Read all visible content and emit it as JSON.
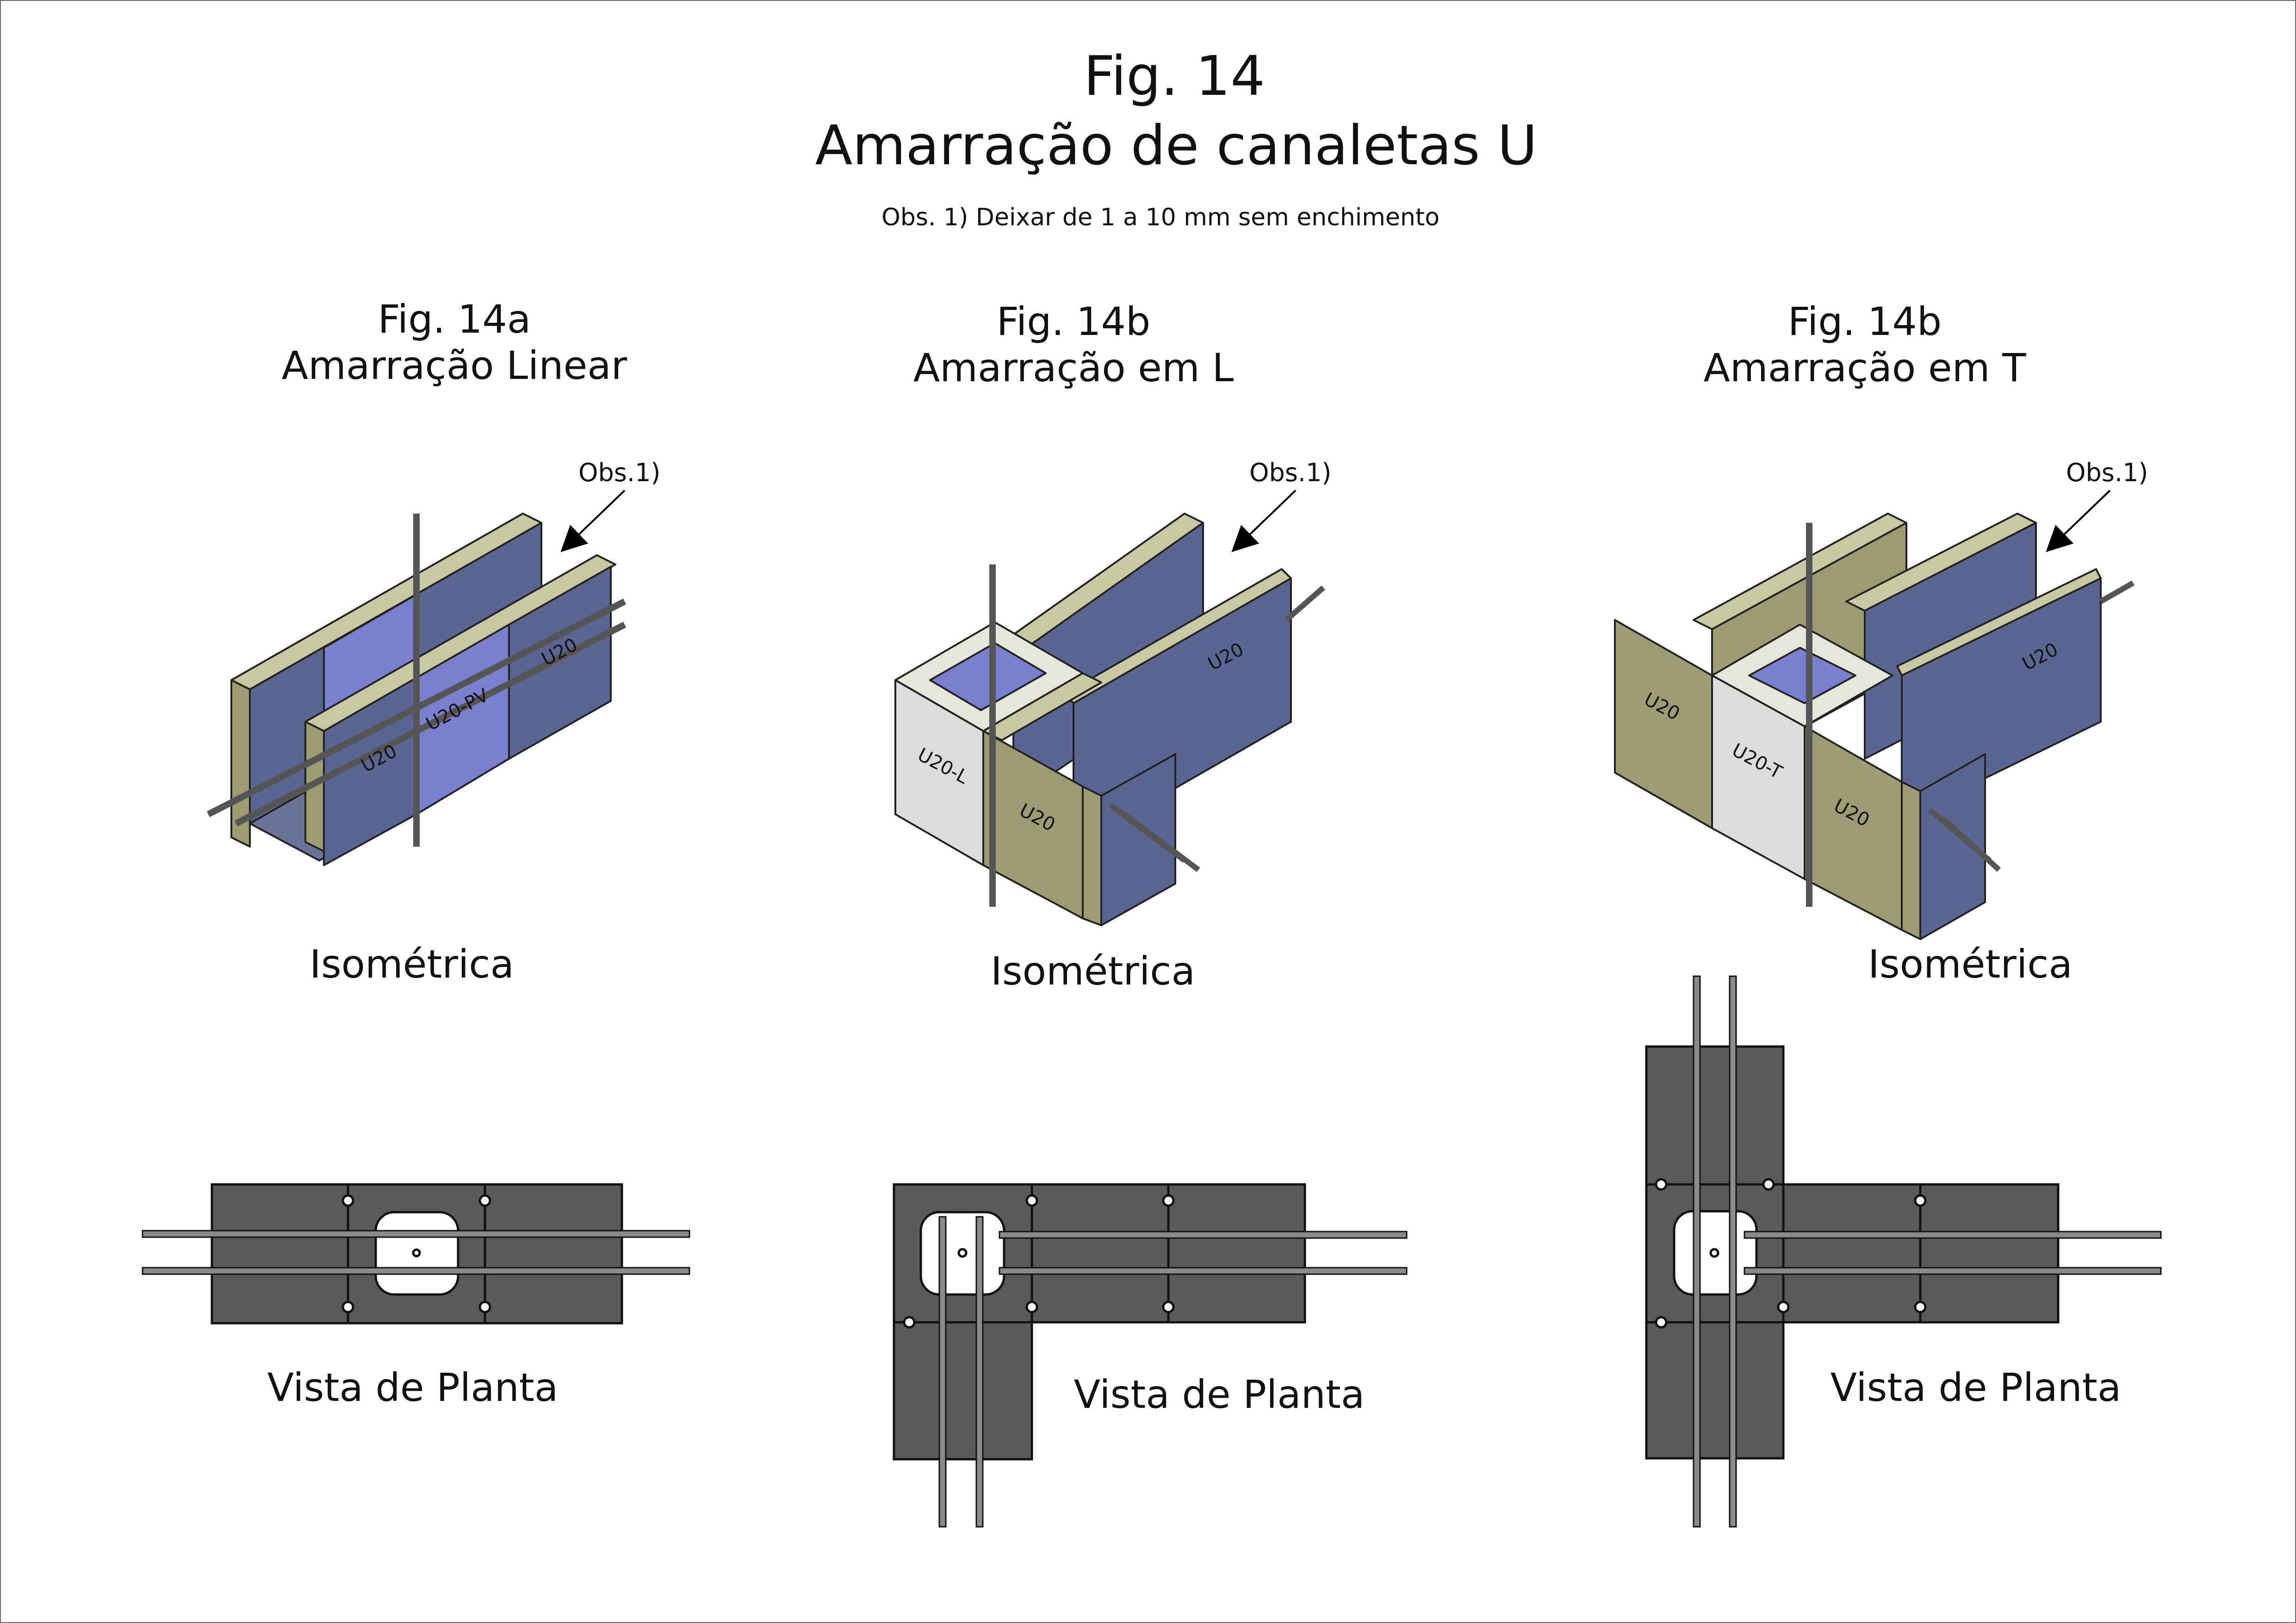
{
  "header": {
    "fig_number": "Fig. 14",
    "title": "Amarração de canaletas U",
    "note": "Obs. 1) Deixar de 1 a 10 mm sem enchimento"
  },
  "panels": [
    {
      "fig": "Fig. 14a",
      "title": "Amarração Linear",
      "obs_label": "Obs.1)",
      "view_iso": "Isométrica",
      "view_plan": "Vista de Planta",
      "block_labels": [
        "U20",
        "U20-PV",
        "U20"
      ]
    },
    {
      "fig": "Fig. 14b",
      "title": "Amarração em L",
      "obs_label": "Obs.1)",
      "view_iso": "Isométrica",
      "view_plan": "Vista de Planta",
      "block_labels": [
        "U20-L",
        "U20",
        "U20"
      ]
    },
    {
      "fig": "Fig. 14b",
      "title": "Amarração em T",
      "obs_label": "Obs.1)",
      "view_iso": "Isométrica",
      "view_plan": "Vista de Planta",
      "block_labels": [
        "U20",
        "U20-T",
        "U20",
        "U20"
      ]
    }
  ],
  "colors": {
    "block_olive": "#9c9b72",
    "block_olive_top": "#c8c9a2",
    "block_blue": "#5b6592",
    "block_violet": "#7b7fd0",
    "block_light": "#dcdcdc",
    "plan_gray": "#5a5a5a",
    "rebar": "#8a8a8a"
  }
}
